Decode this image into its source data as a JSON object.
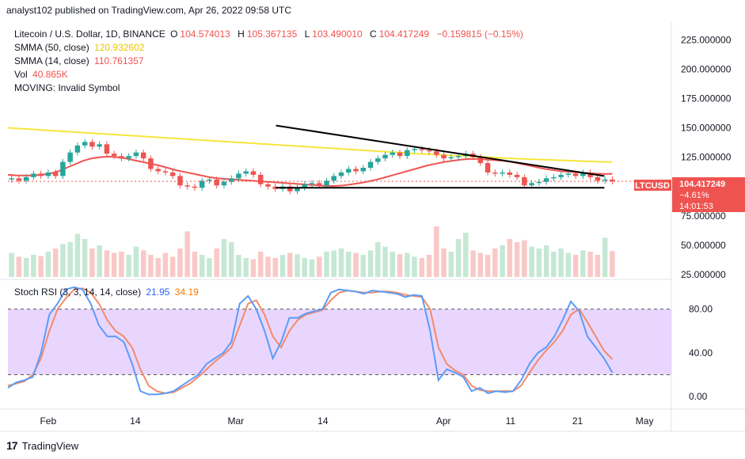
{
  "header": {
    "published": "analyst102 published on TradingView.com, Apr 26, 2022 09:58 UTC"
  },
  "legend": {
    "symbol": "Litecoin / U.S. Dollar, 1D, BINANCE",
    "open_label": "O",
    "open": "104.574013",
    "high_label": "H",
    "high": "105.367135",
    "low_label": "L",
    "low": "103.490010",
    "close_label": "C",
    "close": "104.417249",
    "change": "−0.159815 (−0.15%)",
    "sma50_label": "SMMA (50, close)",
    "sma50_value": "120.932602",
    "sma14_label": "SMMA (14, close)",
    "sma14_value": "110.761357",
    "vol_label": "Vol",
    "vol_value": "40.865K",
    "moving_label": "MOVING: Invalid Symbol",
    "stoch_label": "Stoch RSI (3, 3, 14, 14, close)",
    "stoch_k": "21.95",
    "stoch_d": "34.19"
  },
  "price_badge": {
    "ticker": "LTCUSD",
    "price": "104.417249",
    "change_pct": "−4.61%",
    "countdown": "14:01:53"
  },
  "brand": {
    "name": "TradingView"
  },
  "colors": {
    "up": "#26a69a",
    "down": "#ef5350",
    "sma50": "#f6e63b",
    "sma14": "#ef5350",
    "stoch_k": "#5b9cf6",
    "stoch_d": "#f28b6a",
    "stoch_band": "#e1c8ff",
    "badge": "#ef5350"
  },
  "chart_data": [
    {
      "type": "candlestick",
      "title": "Litecoin / U.S. Dollar, 1D, BINANCE",
      "x_range": [
        "2022-01-26",
        "2022-05-05"
      ],
      "x_ticks": [
        "Feb",
        "14",
        "Mar",
        "14",
        "Apr",
        "11",
        "21",
        "May"
      ],
      "y_ticks": [
        225,
        200,
        175,
        150,
        125,
        100,
        75,
        50,
        25
      ],
      "y_tick_labels": [
        "225.000000",
        "200.000000",
        "175.000000",
        "150.000000",
        "125.000000",
        "100.000000",
        "75.000000",
        "50.000000",
        "25.000000"
      ],
      "ylim": [
        23,
        240
      ],
      "candles_close": [
        107,
        105,
        108,
        111,
        109,
        112,
        109,
        121,
        129,
        135,
        138,
        134,
        136,
        128,
        126,
        124,
        126,
        129,
        124,
        115,
        113,
        112,
        109,
        101,
        100,
        99,
        105,
        106,
        101,
        104,
        107,
        111,
        113,
        110,
        102,
        100,
        98,
        100,
        96,
        99,
        102,
        103,
        101,
        105,
        109,
        112,
        115,
        113,
        116,
        121,
        124,
        127,
        129,
        126,
        131,
        132,
        131,
        130,
        127,
        124,
        125,
        126,
        128,
        125,
        120,
        112,
        111,
        112,
        110,
        108,
        101,
        103,
        104,
        107,
        108,
        110,
        111,
        109,
        112,
        108,
        105,
        106,
        104.42
      ],
      "sma14": [
        110,
        109.5,
        109.3,
        109.5,
        110,
        111,
        113,
        116,
        119,
        122,
        124,
        125,
        125.5,
        125,
        124,
        122.5,
        121,
        119.5,
        118,
        116,
        114,
        112.5,
        111,
        109.5,
        108,
        107,
        106.5,
        106,
        105.5,
        105,
        104.5,
        104,
        103.5,
        103,
        102.5,
        102,
        101.5,
        101,
        100.5,
        100.5,
        101,
        102,
        103,
        104.5,
        106,
        108,
        110,
        112,
        114,
        116,
        118,
        119.5,
        121,
        122,
        123,
        123.5,
        123.5,
        123,
        122.5,
        122,
        121,
        119.5,
        118,
        116.5,
        115,
        114,
        113,
        112.5,
        112,
        111.5,
        111,
        110.8,
        110.8
      ],
      "sma50": [
        150,
        149.5,
        149,
        148.5,
        148,
        147.5,
        147,
        146.5,
        146,
        145.5,
        145,
        144.5,
        144,
        143.5,
        143,
        142.5,
        142,
        141.5,
        141,
        140.5,
        140,
        139.5,
        139,
        138.5,
        138,
        137.5,
        137,
        136.5,
        136,
        135.5,
        135,
        134.5,
        134,
        133.5,
        133,
        132.5,
        132,
        131.5,
        131,
        130.5,
        130,
        129.5,
        129,
        128.5,
        128,
        127.6,
        127.2,
        126.8,
        126.4,
        126,
        125.6,
        125.2,
        124.8,
        124.4,
        124,
        123.7,
        123.4,
        123.1,
        122.8,
        122.5,
        122.2,
        121.9,
        121.6,
        121.3,
        121,
        120.93
      ],
      "volume": [
        38,
        32,
        30,
        35,
        33,
        40,
        45,
        52,
        55,
        68,
        60,
        45,
        50,
        42,
        38,
        40,
        35,
        48,
        42,
        35,
        30,
        38,
        32,
        45,
        72,
        40,
        35,
        30,
        45,
        60,
        55,
        35,
        30,
        28,
        40,
        32,
        30,
        35,
        38,
        36,
        30,
        28,
        32,
        40,
        42,
        45,
        40,
        38,
        35,
        42,
        55,
        48,
        40,
        36,
        38,
        32,
        30,
        35,
        80,
        45,
        40,
        60,
        70,
        42,
        38,
        35,
        45,
        50,
        60,
        55,
        58,
        48,
        45,
        50,
        40,
        45,
        38,
        35,
        42,
        40,
        35,
        62,
        41
      ],
      "trendlines": [
        {
          "name": "descending-resistance",
          "from": [
            "2022-03-07",
            152
          ],
          "to": [
            "2022-04-25",
            109
          ]
        },
        {
          "name": "horizontal-support",
          "from": [
            "2022-03-07",
            99
          ],
          "to": [
            "2022-04-25",
            99
          ]
        }
      ],
      "current_price": 104.417249
    },
    {
      "type": "line",
      "title": "Stoch RSI (3, 3, 14, 14, close)",
      "ylim": [
        -10,
        105
      ],
      "y_ticks": [
        80,
        40,
        0
      ],
      "y_tick_labels": [
        "80.00",
        "40.00",
        "0.00"
      ],
      "band": [
        20,
        80
      ],
      "series": [
        {
          "name": "K",
          "values": [
            8,
            13,
            15,
            18,
            40,
            75,
            85,
            98,
            100,
            98,
            85,
            65,
            55,
            55,
            50,
            30,
            5,
            2,
            2,
            3,
            5,
            10,
            15,
            20,
            30,
            35,
            40,
            50,
            85,
            92,
            80,
            60,
            35,
            50,
            72,
            72,
            76,
            78,
            80,
            95,
            98,
            97,
            96,
            94,
            97,
            96,
            95,
            94,
            91,
            93,
            92,
            60,
            15,
            25,
            22,
            18,
            5,
            8,
            3,
            5,
            4,
            5,
            15,
            30,
            40,
            45,
            55,
            70,
            87,
            78,
            55,
            45,
            35,
            21.95
          ]
        },
        {
          "name": "D",
          "values": [
            10,
            12,
            14,
            20,
            35,
            60,
            80,
            90,
            98,
            99,
            95,
            85,
            70,
            60,
            55,
            45,
            25,
            10,
            5,
            3,
            4,
            8,
            12,
            18,
            25,
            32,
            38,
            45,
            65,
            85,
            88,
            75,
            55,
            45,
            60,
            70,
            75,
            77,
            79,
            88,
            95,
            97,
            96,
            95,
            95,
            96,
            96,
            95,
            93,
            92,
            91,
            80,
            45,
            30,
            24,
            20,
            10,
            6,
            5,
            5,
            5,
            5,
            10,
            22,
            33,
            42,
            50,
            60,
            75,
            80,
            68,
            55,
            42,
            34.19
          ]
        }
      ]
    }
  ]
}
